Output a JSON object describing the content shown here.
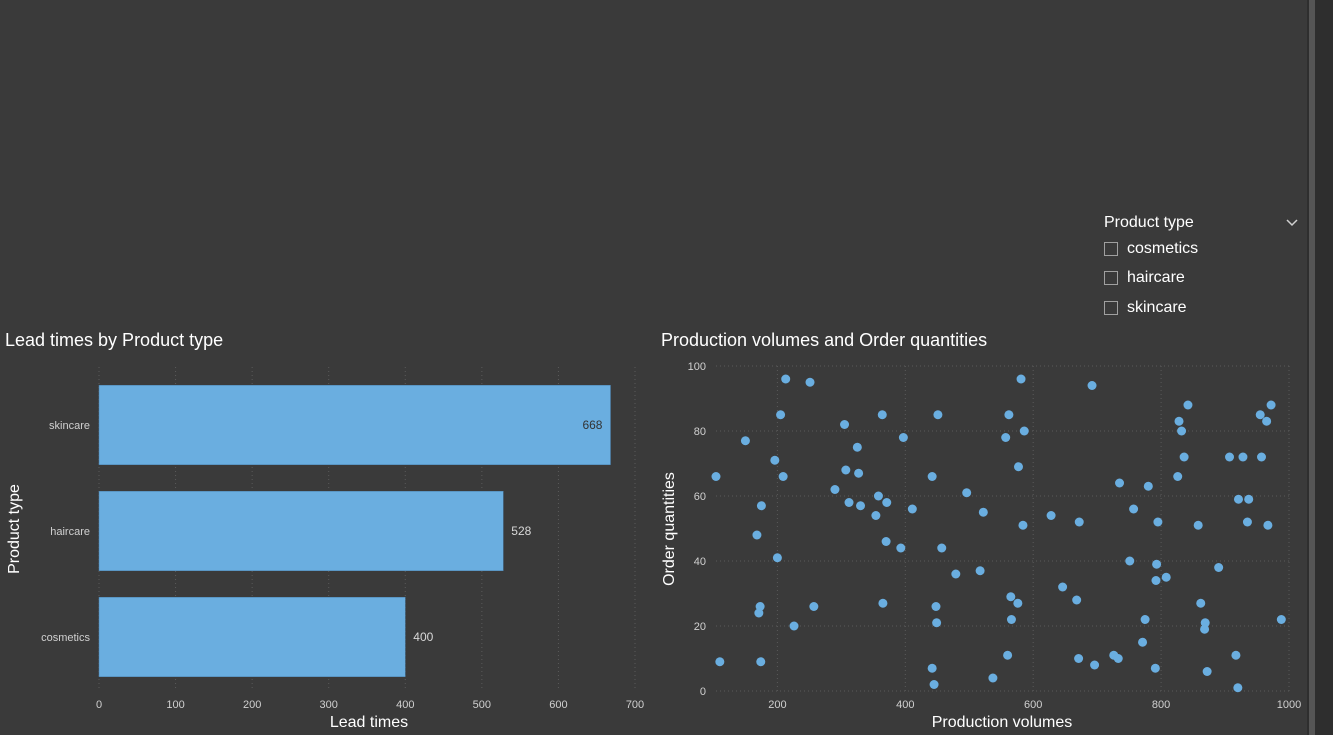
{
  "slicer": {
    "title": "Product type",
    "items": [
      "cosmetics",
      "haircare",
      "skincare"
    ]
  },
  "colors": {
    "bar": "#6aaee0",
    "point": "#6aaee0",
    "grid": "#5a5a5a"
  },
  "chart_data": [
    {
      "type": "bar",
      "orientation": "horizontal",
      "title": "Lead times by Product type",
      "categories": [
        "skincare",
        "haircare",
        "cosmetics"
      ],
      "values": [
        668,
        528,
        400
      ],
      "xlabel": "Lead times",
      "ylabel": "Product type",
      "xlim": [
        0,
        700
      ],
      "xticks": [
        "0",
        "100",
        "200",
        "300",
        "400",
        "500",
        "600",
        "700"
      ],
      "grid": true
    },
    {
      "type": "scatter",
      "title": "Production volumes and Order quantities",
      "xlabel": "Production volumes",
      "ylabel": "Order quantities",
      "xlim": [
        104,
        1000
      ],
      "ylim": [
        0,
        100
      ],
      "xticks": [
        "200",
        "400",
        "600",
        "800",
        "1000"
      ],
      "yticks": [
        "0",
        "20",
        "40",
        "60",
        "80",
        "100"
      ],
      "grid": true,
      "points": [
        [
          104,
          66
        ],
        [
          110,
          9
        ],
        [
          150,
          77
        ],
        [
          168,
          48
        ],
        [
          171,
          24
        ],
        [
          173,
          26
        ],
        [
          174,
          9
        ],
        [
          175,
          57
        ],
        [
          196,
          71
        ],
        [
          200,
          41
        ],
        [
          205,
          85
        ],
        [
          209,
          66
        ],
        [
          213,
          96
        ],
        [
          226,
          20
        ],
        [
          251,
          95
        ],
        [
          257,
          26
        ],
        [
          290,
          62
        ],
        [
          305,
          82
        ],
        [
          307,
          68
        ],
        [
          312,
          58
        ],
        [
          325,
          75
        ],
        [
          327,
          67
        ],
        [
          330,
          57
        ],
        [
          354,
          54
        ],
        [
          358,
          60
        ],
        [
          364,
          85
        ],
        [
          365,
          27
        ],
        [
          370,
          46
        ],
        [
          371,
          58
        ],
        [
          393,
          44
        ],
        [
          397,
          78
        ],
        [
          411,
          56
        ],
        [
          442,
          66
        ],
        [
          442,
          7
        ],
        [
          445,
          2
        ],
        [
          448,
          26
        ],
        [
          449,
          21
        ],
        [
          451,
          85
        ],
        [
          457,
          44
        ],
        [
          479,
          36
        ],
        [
          496,
          61
        ],
        [
          517,
          37
        ],
        [
          522,
          55
        ],
        [
          537,
          4
        ],
        [
          557,
          78
        ],
        [
          560,
          11
        ],
        [
          562,
          85
        ],
        [
          565,
          29
        ],
        [
          566,
          22
        ],
        [
          576,
          27
        ],
        [
          577,
          69
        ],
        [
          581,
          96
        ],
        [
          584,
          51
        ],
        [
          586,
          80
        ],
        [
          628,
          54
        ],
        [
          646,
          32
        ],
        [
          668,
          28
        ],
        [
          671,
          10
        ],
        [
          672,
          52
        ],
        [
          692,
          94
        ],
        [
          696,
          8
        ],
        [
          726,
          11
        ],
        [
          733,
          10
        ],
        [
          735,
          64
        ],
        [
          751,
          40
        ],
        [
          757,
          56
        ],
        [
          771,
          15
        ],
        [
          775,
          22
        ],
        [
          780,
          63
        ],
        [
          791,
          7
        ],
        [
          792,
          34
        ],
        [
          793,
          39
        ],
        [
          795,
          52
        ],
        [
          808,
          35
        ],
        [
          826,
          66
        ],
        [
          828,
          83
        ],
        [
          832,
          80
        ],
        [
          836,
          72
        ],
        [
          842,
          88
        ],
        [
          858,
          51
        ],
        [
          862,
          27
        ],
        [
          868,
          19
        ],
        [
          869,
          21
        ],
        [
          872,
          6
        ],
        [
          890,
          38
        ],
        [
          907,
          72
        ],
        [
          917,
          11
        ],
        [
          920,
          1
        ],
        [
          921,
          59
        ],
        [
          928,
          72
        ],
        [
          935,
          52
        ],
        [
          937,
          59
        ],
        [
          955,
          85
        ],
        [
          957,
          72
        ],
        [
          965,
          83
        ],
        [
          967,
          51
        ],
        [
          972,
          88
        ],
        [
          988,
          22
        ]
      ]
    }
  ]
}
